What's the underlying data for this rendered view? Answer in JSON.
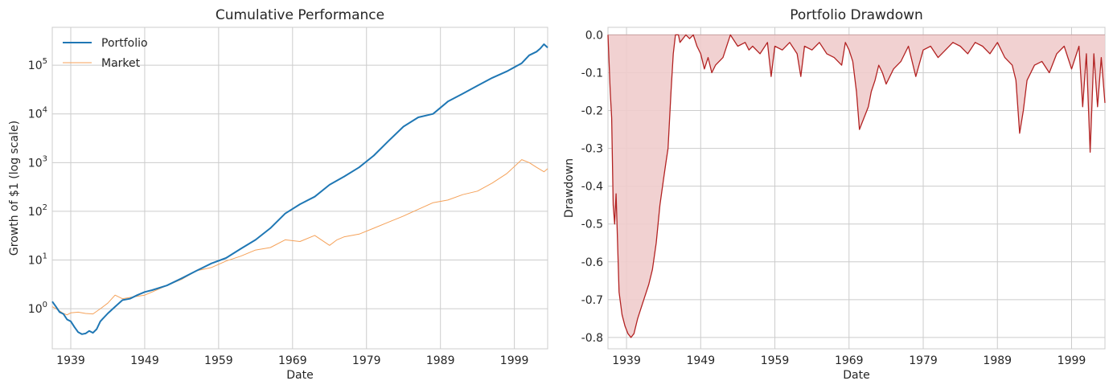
{
  "chart_data": [
    {
      "type": "line",
      "title": "Cumulative Performance",
      "xlabel": "Date",
      "ylabel": "Growth of $1 (log scale)",
      "yscale": "log",
      "xlim": [
        1936.5,
        2003.5
      ],
      "ylim": [
        0.15,
        600000
      ],
      "x_ticks": [
        1939,
        1949,
        1959,
        1969,
        1979,
        1989,
        1999
      ],
      "y_ticks": [
        {
          "value": 1,
          "base": "10",
          "exp": "0"
        },
        {
          "value": 10,
          "base": "10",
          "exp": "1"
        },
        {
          "value": 100,
          "base": "10",
          "exp": "2"
        },
        {
          "value": 1000,
          "base": "10",
          "exp": "3"
        },
        {
          "value": 10000,
          "base": "10",
          "exp": "4"
        },
        {
          "value": 100000,
          "base": "10",
          "exp": "5"
        }
      ],
      "grid": true,
      "legend_position": "top-left",
      "series": [
        {
          "name": "Portfolio",
          "color": "#1f77b4",
          "x": [
            1936.5,
            1937,
            1937.5,
            1938,
            1938.5,
            1939,
            1939.5,
            1940,
            1940.5,
            1941,
            1941.5,
            1942,
            1942.5,
            1943,
            1944,
            1945,
            1946,
            1947,
            1948,
            1949,
            1950,
            1952,
            1954,
            1956,
            1958,
            1960,
            1962,
            1964,
            1966,
            1968,
            1970,
            1972,
            1974,
            1976,
            1978,
            1980,
            1982,
            1984,
            1986,
            1988,
            1990,
            1992,
            1994,
            1996,
            1998,
            2000,
            2001,
            2002,
            2002.5,
            2003,
            2003.5
          ],
          "y": [
            1.4,
            1.1,
            0.85,
            0.78,
            0.6,
            0.55,
            0.42,
            0.33,
            0.3,
            0.31,
            0.35,
            0.32,
            0.38,
            0.55,
            0.8,
            1.1,
            1.5,
            1.6,
            1.9,
            2.2,
            2.4,
            3.0,
            4.2,
            6.0,
            8.5,
            11,
            17,
            26,
            45,
            90,
            140,
            200,
            350,
            520,
            800,
            1400,
            2800,
            5500,
            8500,
            10000,
            18000,
            26000,
            38000,
            55000,
            75000,
            110000,
            160000,
            190000,
            220000,
            270000,
            230000
          ]
        },
        {
          "name": "Market",
          "color": "#f5a25a",
          "x": [
            1936.5,
            1937,
            1937.5,
            1938,
            1938.5,
            1939,
            1940,
            1941,
            1942,
            1943,
            1944,
            1945,
            1946,
            1947,
            1948,
            1949,
            1950,
            1952,
            1954,
            1956,
            1958,
            1960,
            1962,
            1964,
            1966,
            1968,
            1970,
            1972,
            1974,
            1975,
            1976,
            1978,
            1980,
            1982,
            1984,
            1986,
            1988,
            1990,
            1992,
            1994,
            1996,
            1998,
            2000,
            2001,
            2002,
            2003,
            2003.5
          ],
          "y": [
            1.1,
            1.0,
            0.9,
            0.8,
            0.75,
            0.82,
            0.85,
            0.8,
            0.78,
            1.0,
            1.3,
            1.9,
            1.6,
            1.7,
            1.8,
            1.9,
            2.2,
            3.0,
            4.0,
            6.0,
            7.0,
            9.5,
            12,
            16,
            18,
            26,
            24,
            32,
            20,
            26,
            30,
            34,
            45,
            60,
            80,
            110,
            150,
            170,
            220,
            260,
            380,
            600,
            1150,
            1000,
            800,
            650,
            750
          ]
        }
      ]
    },
    {
      "type": "area",
      "title": "Portfolio Drawdown",
      "xlabel": "Date",
      "ylabel": "Drawdown",
      "xlim": [
        1936.5,
        2003.5
      ],
      "ylim": [
        -0.83,
        0.02
      ],
      "x_ticks": [
        1939,
        1949,
        1959,
        1969,
        1979,
        1989,
        1999
      ],
      "y_ticks": [
        "0.0",
        "-0.1",
        "-0.2",
        "-0.3",
        "-0.4",
        "-0.5",
        "-0.6",
        "-0.7",
        "-0.8"
      ],
      "y_tick_values": [
        0,
        -0.1,
        -0.2,
        -0.3,
        -0.4,
        -0.5,
        -0.6,
        -0.7,
        -0.8
      ],
      "grid": true,
      "line_color": "#b22222",
      "fill_color": "#f0cccc",
      "series": [
        {
          "name": "Drawdown",
          "x": [
            1936.5,
            1936.8,
            1937,
            1937.2,
            1937.4,
            1937.6,
            1938,
            1938.4,
            1938.8,
            1939.2,
            1939.6,
            1940,
            1940.5,
            1941,
            1941.5,
            1942,
            1942.5,
            1943,
            1943.5,
            1944,
            1944.3,
            1944.6,
            1945,
            1945.3,
            1945.6,
            1946,
            1946.2,
            1947,
            1947.5,
            1948,
            1948.5,
            1949,
            1949.5,
            1950,
            1950.5,
            1951,
            1952,
            1953,
            1954,
            1955,
            1955.5,
            1956,
            1957,
            1958,
            1958.5,
            1959,
            1960,
            1961,
            1962,
            1962.5,
            1963,
            1964,
            1965,
            1966,
            1967,
            1968,
            1968.5,
            1969,
            1969.5,
            1970,
            1970.4,
            1970.8,
            1971.2,
            1971.6,
            1972,
            1972.5,
            1973,
            1973.5,
            1974,
            1975,
            1976,
            1977,
            1978,
            1979,
            1980,
            1981,
            1982,
            1983,
            1984,
            1985,
            1986,
            1987,
            1988,
            1989,
            1990,
            1991,
            1991.5,
            1992,
            1992.5,
            1993,
            1994,
            1995,
            1996,
            1997,
            1998,
            1999,
            2000,
            2000.5,
            2001,
            2001.5,
            2002,
            2002.5,
            2003,
            2003.5
          ],
          "y": [
            0,
            -0.15,
            -0.22,
            -0.45,
            -0.5,
            -0.42,
            -0.68,
            -0.74,
            -0.77,
            -0.79,
            -0.8,
            -0.79,
            -0.75,
            -0.72,
            -0.69,
            -0.66,
            -0.62,
            -0.55,
            -0.45,
            -0.38,
            -0.34,
            -0.3,
            -0.15,
            -0.05,
            0,
            0,
            -0.02,
            0,
            -0.01,
            0,
            -0.03,
            -0.05,
            -0.09,
            -0.06,
            -0.1,
            -0.08,
            -0.06,
            0,
            -0.03,
            -0.02,
            -0.04,
            -0.03,
            -0.05,
            -0.02,
            -0.11,
            -0.03,
            -0.04,
            -0.02,
            -0.05,
            -0.11,
            -0.03,
            -0.04,
            -0.02,
            -0.05,
            -0.06,
            -0.08,
            -0.02,
            -0.04,
            -0.07,
            -0.15,
            -0.25,
            -0.23,
            -0.21,
            -0.19,
            -0.15,
            -0.12,
            -0.08,
            -0.1,
            -0.13,
            -0.09,
            -0.07,
            -0.03,
            -0.11,
            -0.04,
            -0.03,
            -0.06,
            -0.04,
            -0.02,
            -0.03,
            -0.05,
            -0.02,
            -0.03,
            -0.05,
            -0.02,
            -0.06,
            -0.08,
            -0.12,
            -0.26,
            -0.2,
            -0.12,
            -0.08,
            -0.07,
            -0.1,
            -0.05,
            -0.03,
            -0.09,
            -0.03,
            -0.19,
            -0.05,
            -0.31,
            -0.05,
            -0.19,
            -0.06,
            -0.18
          ]
        }
      ]
    }
  ]
}
